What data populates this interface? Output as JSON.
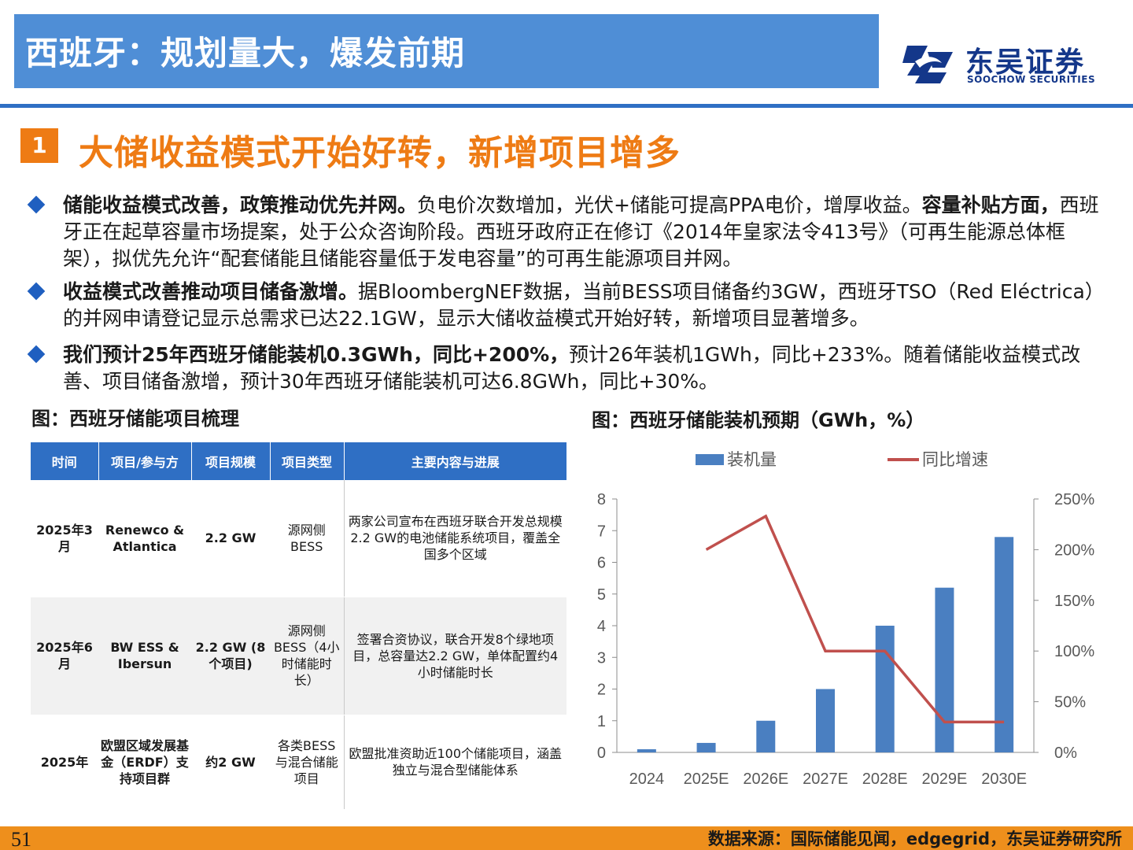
{
  "header": {
    "title": "西班牙：规划量大，爆发前期"
  },
  "logo": {
    "name_cn": "东吴证券",
    "name_en": "SOOCHOW SECURITIES"
  },
  "section": {
    "number": "1",
    "title": "大储收益模式开始好转，新增项目增多"
  },
  "bullets": [
    {
      "bold1": "储能收益模式改善，政策推动优先并网。",
      "text1": "负电价次数增加，光伏+储能可提高PPA电价，增厚收益。",
      "bold2": "容量补贴方面，",
      "text2": "西班牙正在起草容量市场提案，处于公众咨询阶段。西班牙政府正在修订《2014年皇家法令413号》（可再生能源总体框架），拟优先允许“配套储能且储能容量低于发电容量”的可再生能源项目并网。"
    },
    {
      "bold1": "收益模式改善推动项目储备激增。",
      "text1": "据BloombergNEF数据，当前BESS项目储备约3GW，西班牙TSO（Red Eléctrica）的并网申请登记显示总需求已达22.1GW，显示大储收益模式开始好转，新增项目显著增多。"
    },
    {
      "bold1": "我们预计25年西班牙储能装机0.3GWh，同比+200%，",
      "text1": "预计26年装机1GWh，同比+233%。随着储能收益模式改善、项目储备激增，预计30年西班牙储能装机可达6.8GWh，同比+30%。"
    }
  ],
  "table": {
    "title": "图：西班牙储能项目梳理",
    "headers": [
      "时间",
      "项目/参与方",
      "项目规模",
      "项目类型",
      "主要内容与进展"
    ],
    "rows": [
      {
        "time": "2025年3月",
        "party": "Renewco & Atlantica",
        "scale": "2.2 GW",
        "type": "源网侧BESS",
        "content": "两家公司宣布在西班牙联合开发总规模2.2 GW的电池储能系统项目，覆盖全国多个区域"
      },
      {
        "time": "2025年6月",
        "party": "BW ESS & Ibersun",
        "scale": "2.2 GW (8个项目)",
        "type": "源网侧BESS（4小时储能时长）",
        "content": "签署合资协议，联合开发8个绿地项目，总容量达2.2 GW，单体配置约4小时储能时长"
      },
      {
        "time": "2025年",
        "party": "欧盟区域发展基金（ERDF）支持项目群",
        "scale": "约2 GW",
        "type": "各类BESS与混合储能项目",
        "content": "欧盟批准资助近100个储能项目，涵盖独立与混合型储能体系"
      }
    ]
  },
  "chart_title": "图：西班牙储能装机预期（GWh，%）",
  "chart_data": {
    "type": "bar",
    "categories": [
      "2024",
      "2025E",
      "2026E",
      "2027E",
      "2028E",
      "2029E",
      "2030E"
    ],
    "series": [
      {
        "name": "装机量",
        "type": "bar",
        "axis": "left",
        "color": "#4a7fc1",
        "values": [
          0.1,
          0.3,
          1.0,
          2.0,
          4.0,
          5.2,
          6.8
        ]
      },
      {
        "name": "同比增速",
        "type": "line",
        "axis": "right",
        "color": "#c0504d",
        "values": [
          null,
          2.0,
          2.33,
          1.0,
          1.0,
          0.3,
          0.3
        ]
      }
    ],
    "ylim": [
      0,
      8
    ],
    "yticks": [
      "0",
      "1",
      "2",
      "3",
      "4",
      "5",
      "6",
      "7",
      "8"
    ],
    "y2lim": [
      0,
      2.5
    ],
    "y2ticks": [
      "0%",
      "50%",
      "100%",
      "150%",
      "200%",
      "250%"
    ],
    "legend": "top"
  },
  "footer": {
    "page": "51",
    "source": "数据来源：国际储能见闻，edgegrid，东吴证券研究所"
  }
}
